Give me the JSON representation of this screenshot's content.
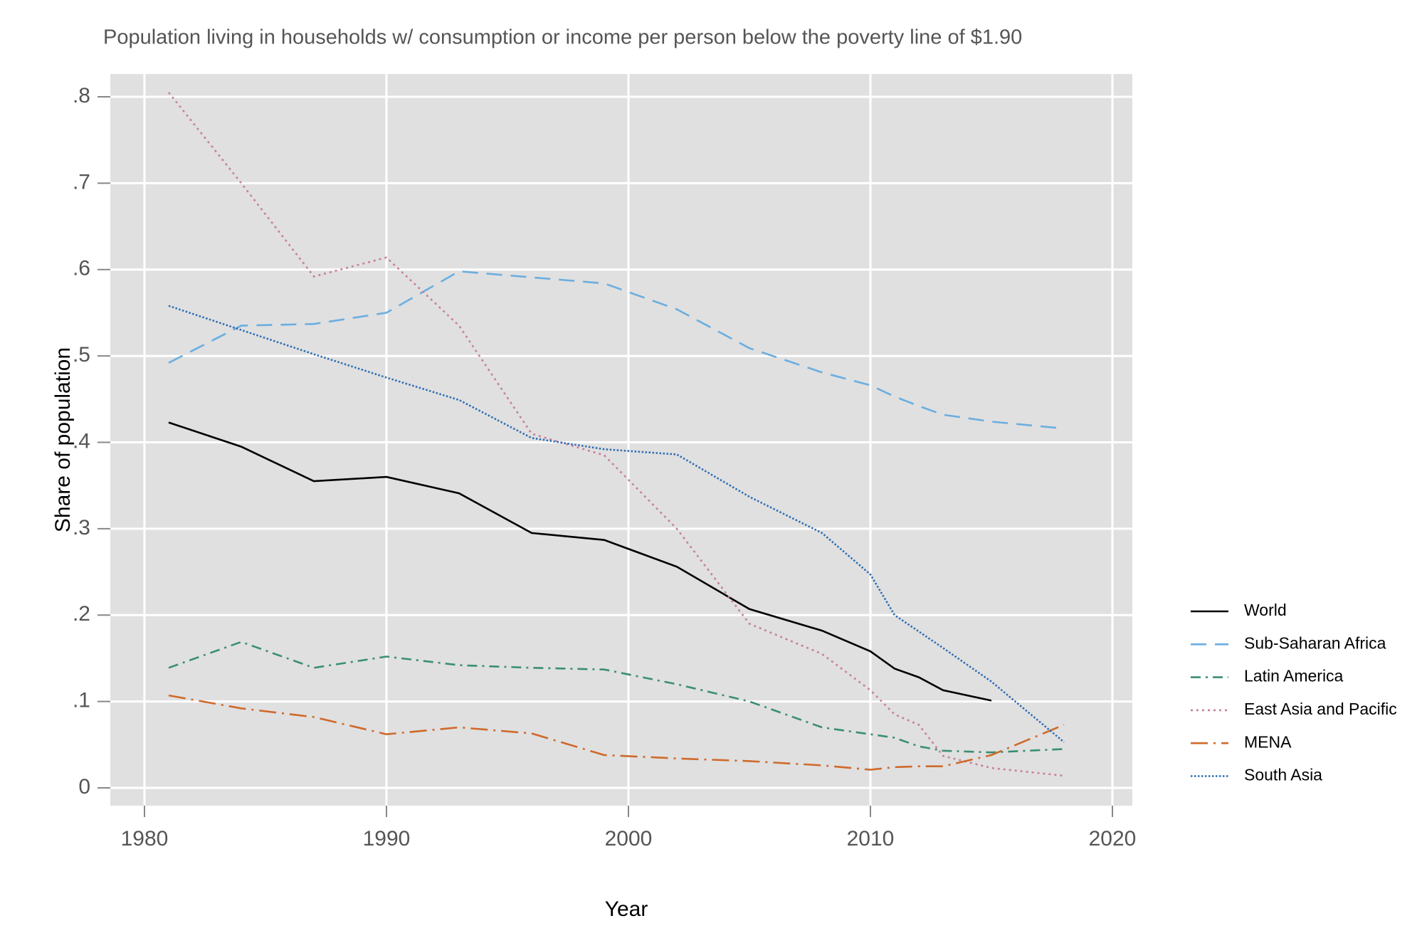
{
  "chart_data": {
    "type": "line",
    "title": "Population living in households w/ consumption or income per person below the poverty line of $1.90",
    "x_label": "Year",
    "y_label": "Share of population",
    "x": [
      1981,
      1984,
      1987,
      1990,
      1993,
      1996,
      1999,
      2002,
      2005,
      2008,
      2010,
      2011,
      2012,
      2013,
      2015,
      2018
    ],
    "series": [
      {
        "name": "World",
        "color": "#000000",
        "dash": "solid",
        "values": [
          0.423,
          0.395,
          0.355,
          0.36,
          0.341,
          0.295,
          0.287,
          0.256,
          0.207,
          0.182,
          0.158,
          0.138,
          0.128,
          0.113,
          0.101,
          null
        ]
      },
      {
        "name": "Sub-Saharan Africa",
        "color": "#6aaee0",
        "dash": "longdash",
        "values": [
          0.492,
          0.535,
          0.537,
          0.55,
          0.598,
          0.591,
          0.584,
          0.554,
          0.509,
          0.481,
          0.466,
          0.453,
          0.442,
          0.432,
          0.424,
          0.416
        ]
      },
      {
        "name": "Latin America",
        "color": "#3a8f6f",
        "dash": "dashdot",
        "values": [
          0.139,
          0.169,
          0.139,
          0.152,
          0.142,
          0.139,
          0.137,
          0.12,
          0.1,
          0.07,
          0.062,
          0.058,
          0.048,
          0.043,
          0.041,
          0.045
        ]
      },
      {
        "name": "East Asia and Pacific",
        "color": "#c87fa0",
        "dash": "dotted",
        "values": [
          0.805,
          0.7,
          0.592,
          0.614,
          0.535,
          0.41,
          0.385,
          0.3,
          0.19,
          0.155,
          0.113,
          0.085,
          0.073,
          0.037,
          0.023,
          0.014
        ]
      },
      {
        "name": "MENA",
        "color": "#d0692b",
        "dash": "longdashdot",
        "values": [
          0.107,
          0.092,
          0.082,
          0.062,
          0.07,
          0.063,
          0.038,
          0.034,
          0.031,
          0.026,
          0.021,
          0.024,
          0.025,
          0.025,
          0.038,
          0.073
        ]
      },
      {
        "name": "South Asia",
        "color": "#2e6db4",
        "dash": "densedot",
        "values": [
          0.558,
          0.53,
          0.502,
          0.475,
          0.449,
          0.405,
          0.392,
          0.386,
          0.337,
          0.295,
          0.247,
          0.2,
          0.181,
          0.162,
          0.123,
          0.053
        ]
      }
    ],
    "xlim": [
      1980,
      2020
    ],
    "xticks": [
      1980,
      1990,
      2000,
      2010,
      2020
    ],
    "ylim": [
      0,
      0.8
    ],
    "yticks": [
      0,
      {
        "value": 0.1,
        "label": ".1"
      },
      {
        "value": 0.2,
        "label": ".2"
      },
      {
        "value": 0.3,
        "label": ".3"
      },
      {
        "value": 0.4,
        "label": ".4"
      },
      {
        "value": 0.5,
        "label": ".5"
      },
      {
        "value": 0.6,
        "label": ".6"
      },
      {
        "value": 0.7,
        "label": ".7"
      },
      {
        "value": 0.8,
        "label": ".8"
      }
    ],
    "grid": true,
    "legend": "right"
  }
}
